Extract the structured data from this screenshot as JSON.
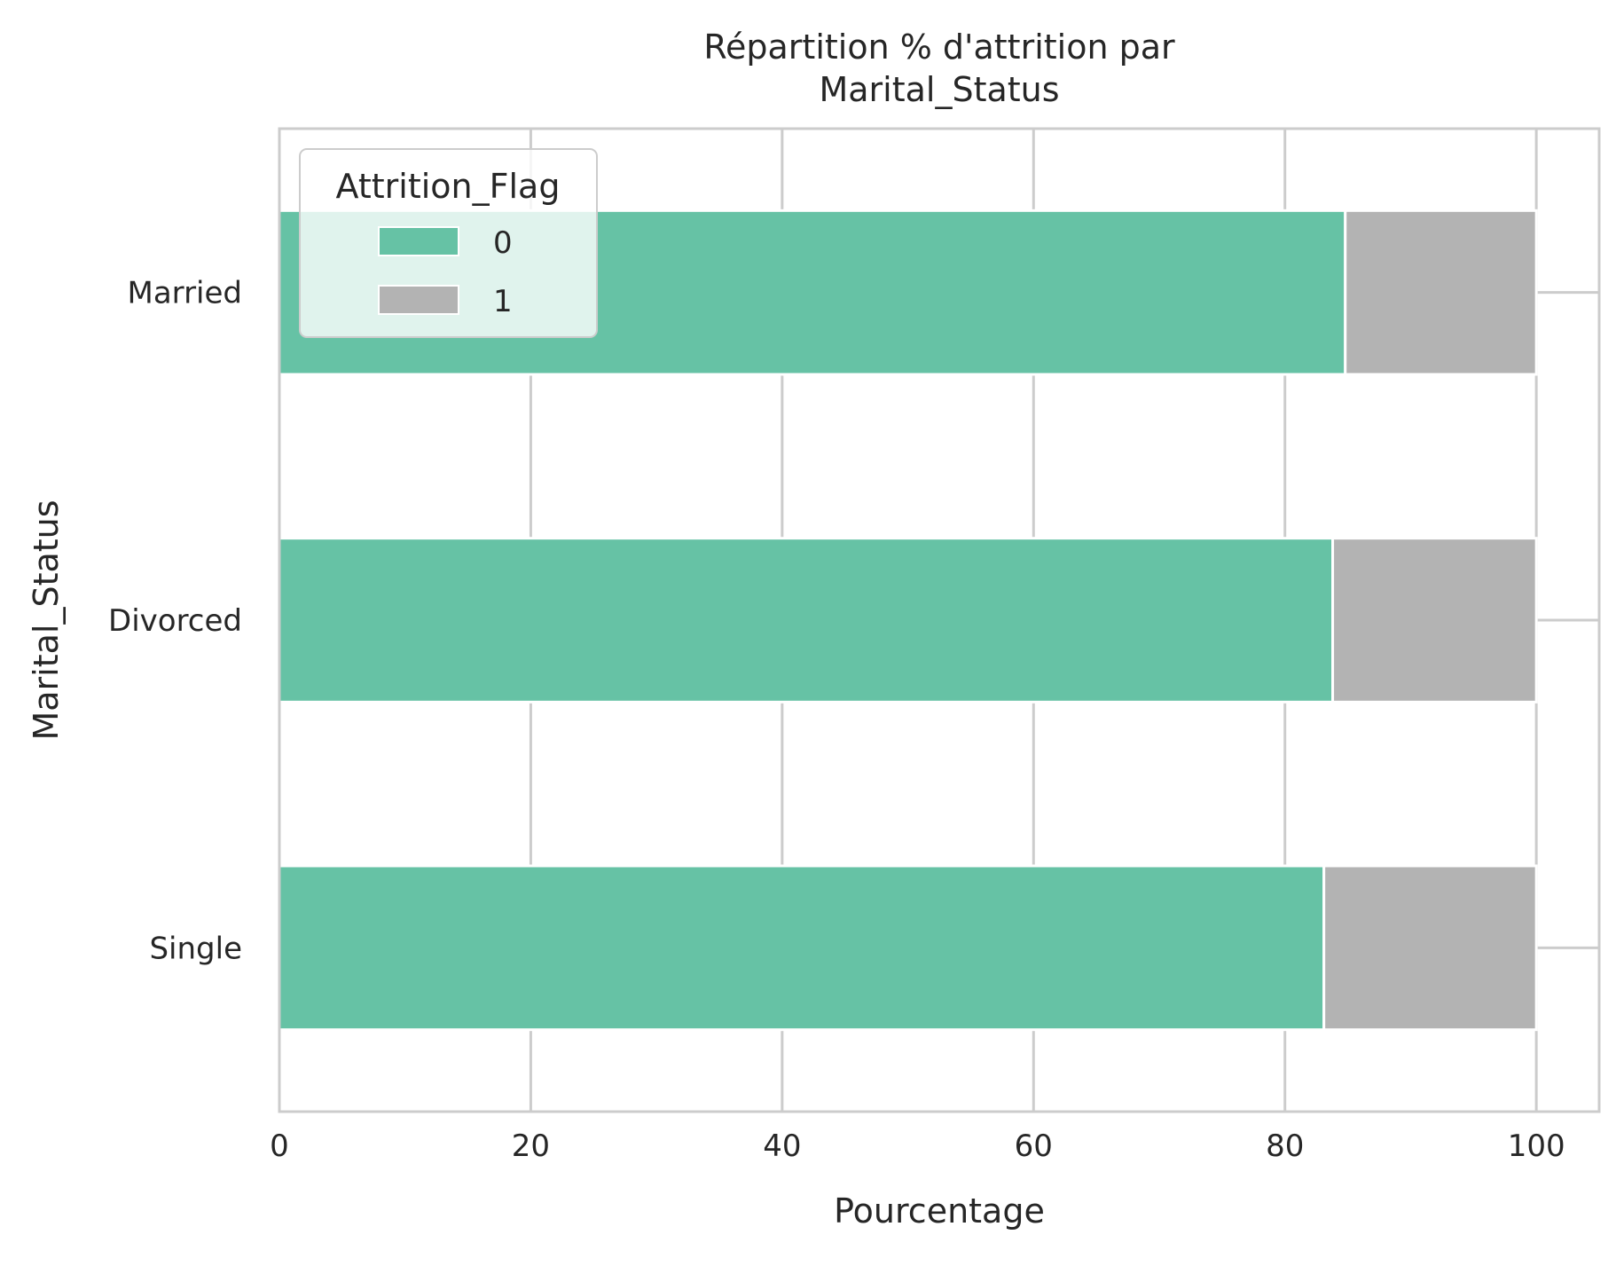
{
  "chart_data": {
    "type": "bar",
    "orientation": "horizontal",
    "stacked": true,
    "title": "Répartition % d'attrition par\nMarital_Status",
    "xlabel": "Pourcentage",
    "ylabel": "Marital_Status",
    "categories": [
      "Married",
      "Divorced",
      "Single"
    ],
    "series": [
      {
        "name": "0",
        "values": [
          84.8,
          83.8,
          83.1
        ],
        "color": "#66c2a5"
      },
      {
        "name": "1",
        "values": [
          15.2,
          16.2,
          16.9
        ],
        "color": "#b3b3b3"
      }
    ],
    "xlim": [
      0,
      105
    ],
    "xticks": [
      0,
      20,
      40,
      60,
      80,
      100
    ],
    "legend": {
      "title": "Attrition_Flag",
      "position": "upper-left"
    },
    "grid": true
  }
}
